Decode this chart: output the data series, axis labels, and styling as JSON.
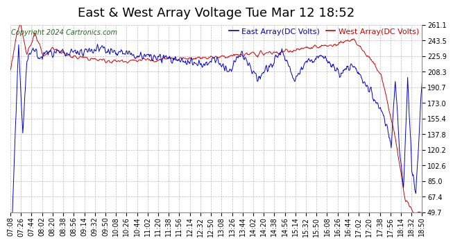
{
  "title": "East & West Array Voltage Tue Mar 12 18:52",
  "copyright": "Copyright 2024 Cartronics.com",
  "east_label": "East Array(DC Volts)",
  "west_label": "West Array(DC Volts)",
  "east_color": "#0000cc",
  "west_color": "#cc0000",
  "background_color": "#ffffff",
  "plot_bg_color": "#ffffff",
  "grid_color": "#bbbbbb",
  "yticks": [
    49.7,
    67.4,
    85.0,
    102.6,
    120.2,
    137.8,
    155.4,
    173.0,
    190.7,
    208.3,
    225.9,
    243.5,
    261.1
  ],
  "ymin": 49.7,
  "ymax": 261.1,
  "xtick_labels": [
    "07:08",
    "07:26",
    "07:44",
    "08:02",
    "08:20",
    "08:38",
    "08:56",
    "09:14",
    "09:32",
    "09:50",
    "10:08",
    "10:26",
    "10:44",
    "11:02",
    "11:20",
    "11:38",
    "11:56",
    "12:14",
    "12:32",
    "12:50",
    "13:08",
    "13:26",
    "13:44",
    "14:02",
    "14:20",
    "14:38",
    "14:56",
    "15:14",
    "15:32",
    "15:50",
    "16:08",
    "16:26",
    "16:44",
    "17:02",
    "17:20",
    "17:38",
    "17:56",
    "18:14",
    "18:32",
    "18:50"
  ],
  "title_fontsize": 13,
  "label_fontsize": 8,
  "tick_fontsize": 7,
  "copyright_fontsize": 7,
  "line_width": 0.7
}
